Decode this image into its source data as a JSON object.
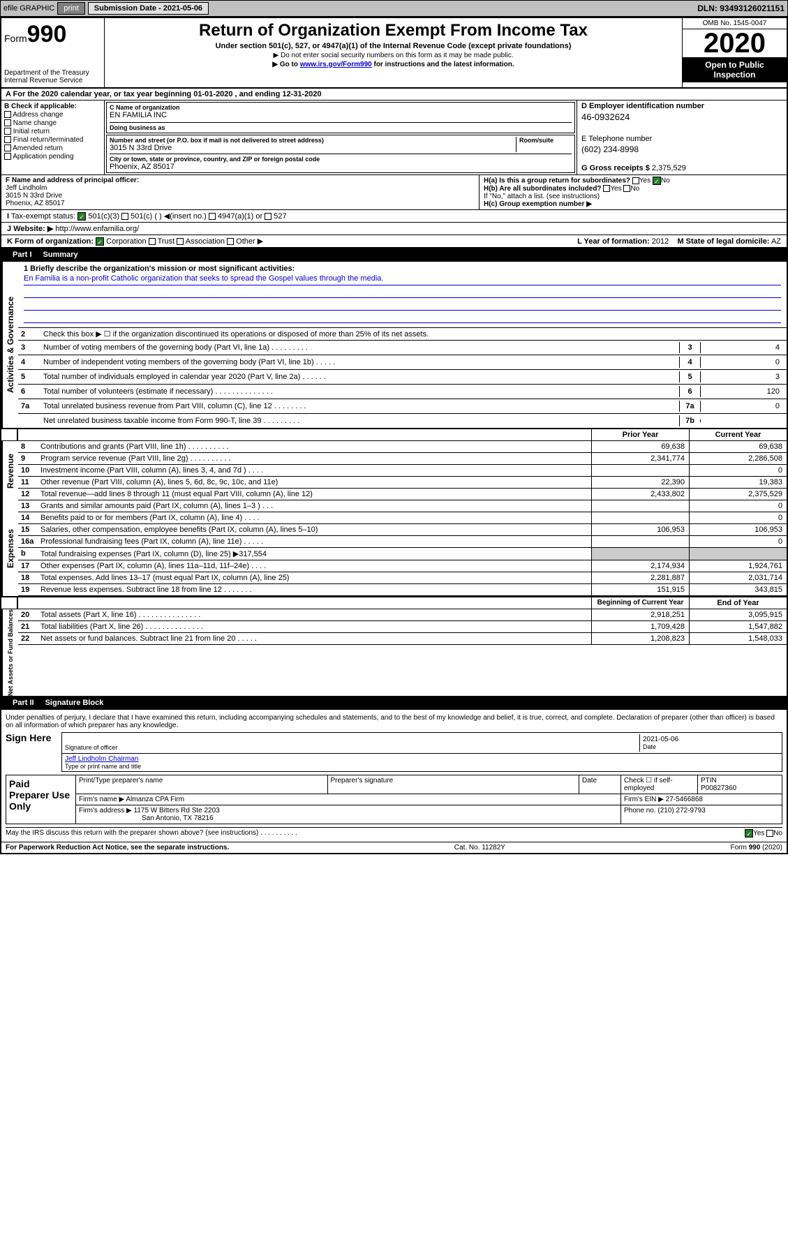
{
  "topbar": {
    "efile_label": "efile GRAPHIC",
    "print_label": "print",
    "submission_label": "Submission Date - 2021-05-06",
    "dln": "DLN: 93493126021151"
  },
  "header": {
    "form_label": "Form",
    "form_number": "990",
    "dept": "Department of the Treasury\nInternal Revenue Service",
    "title": "Return of Organization Exempt From Income Tax",
    "subtitle": "Under section 501(c), 527, or 4947(a)(1) of the Internal Revenue Code (except private foundations)",
    "note1": "▶ Do not enter social security numbers on this form as it may be made public.",
    "note2_pre": "▶ Go to ",
    "note2_link": "www.irs.gov/Form990",
    "note2_post": " for instructions and the latest information.",
    "omb": "OMB No. 1545-0047",
    "year": "2020",
    "open_inspect": "Open to Public Inspection"
  },
  "period": "A For the 2020 calendar year, or tax year beginning 01-01-2020   , and ending 12-31-2020",
  "section_b": {
    "label": "B Check if applicable:",
    "opts": [
      "Address change",
      "Name change",
      "Initial return",
      "Final return/terminated",
      "Amended return",
      "Application pending"
    ]
  },
  "section_c": {
    "name_label": "C Name of organization",
    "name": "EN FAMILIA INC",
    "dba_label": "Doing business as",
    "addr_label": "Number and street (or P.O. box if mail is not delivered to street address)",
    "room_label": "Room/suite",
    "addr": "3015 N 33rd Drive",
    "city_label": "City or town, state or province, country, and ZIP or foreign postal code",
    "city": "Phoenix, AZ  85017"
  },
  "section_d": {
    "ein_label": "D Employer identification number",
    "ein": "46-0932624",
    "tel_label": "E Telephone number",
    "tel": "(602) 234-8998",
    "gross_label": "G Gross receipts $",
    "gross": "2,375,529"
  },
  "section_f": {
    "label": "F  Name and address of principal officer:",
    "name": "Jeff Lindholm",
    "addr1": "3015 N 33rd Drive",
    "addr2": "Phoenix, AZ  85017"
  },
  "section_h": {
    "ha_label": "H(a)  Is this a group return for subordinates?",
    "ha_yes": "Yes",
    "ha_no": "No",
    "hb_label": "H(b)  Are all subordinates included?",
    "hb_yes": "Yes",
    "hb_no": "No",
    "hb_note": "If \"No,\" attach a list. (see instructions)",
    "hc_label": "H(c)  Group exemption number ▶"
  },
  "tax_exempt": {
    "label_i": "I",
    "label": "Tax-exempt status:",
    "o1": "501(c)(3)",
    "o2": "501(c) (   ) ◀(insert no.)",
    "o3": "4947(a)(1) or",
    "o4": "527"
  },
  "website": {
    "label_j": "J",
    "label": "Website: ▶",
    "value": "http://www.enfamilia.org/"
  },
  "section_k": {
    "label": "K Form of organization:",
    "o1": "Corporation",
    "o2": "Trust",
    "o3": "Association",
    "o4": "Other ▶",
    "year_label": "L Year of formation:",
    "year": "2012",
    "state_label": "M State of legal domicile:",
    "state": "AZ"
  },
  "part1": {
    "num": "Part I",
    "title": "Summary",
    "tab1": "Activities & Governance",
    "tab2": "Revenue",
    "tab3": "Expenses",
    "tab4": "Net Assets or Fund Balances",
    "l1_label": "1  Briefly describe the organization's mission or most significant activities:",
    "l1_text": "En Familia is a non-profit Catholic organization that seeks to spread the Gospel values through the media.",
    "l2": "Check this box ▶ ☐  if the organization discontinued its operations or disposed of more than 25% of its net assets.",
    "lines_gov": [
      {
        "n": "3",
        "t": "Number of voting members of the governing body (Part VI, line 1a)  .  .  .  .  .  .  .  .  .",
        "b": "3",
        "v": "4"
      },
      {
        "n": "4",
        "t": "Number of independent voting members of the governing body (Part VI, line 1b)  .  .  .  .  .",
        "b": "4",
        "v": "0"
      },
      {
        "n": "5",
        "t": "Total number of individuals employed in calendar year 2020 (Part V, line 2a)  .  .  .  .  .  .",
        "b": "5",
        "v": "3"
      },
      {
        "n": "6",
        "t": "Total number of volunteers (estimate if necessary)  .  .  .  .  .  .  .  .  .  .  .  .  .  .",
        "b": "6",
        "v": "120"
      },
      {
        "n": "7a",
        "t": "Total unrelated business revenue from Part VIII, column (C), line 12  .  .  .  .  .  .  .  .",
        "b": "7a",
        "v": "0"
      },
      {
        "n": "",
        "t": "Net unrelated business taxable income from Form 990-T, line 39  .  .  .  .  .  .  .  .  .",
        "b": "7b",
        "v": ""
      }
    ],
    "col_head1": "Prior Year",
    "col_head2": "Current Year",
    "rev_lines": [
      {
        "n": "8",
        "t": "Contributions and grants (Part VIII, line 1h)  .  .  .  .  .  .  .  .  .  .",
        "v1": "69,638",
        "v2": "69,638"
      },
      {
        "n": "9",
        "t": "Program service revenue (Part VIII, line 2g)  .  .  .  .  .  .  .  .  .  .",
        "v1": "2,341,774",
        "v2": "2,286,508"
      },
      {
        "n": "10",
        "t": "Investment income (Part VIII, column (A), lines 3, 4, and 7d )  .  .  .  .",
        "v1": "",
        "v2": "0"
      },
      {
        "n": "11",
        "t": "Other revenue (Part VIII, column (A), lines 5, 6d, 8c, 9c, 10c, and 11e)",
        "v1": "22,390",
        "v2": "19,383"
      },
      {
        "n": "12",
        "t": "Total revenue—add lines 8 through 11 (must equal Part VIII, column (A), line 12)",
        "v1": "2,433,802",
        "v2": "2,375,529"
      }
    ],
    "exp_lines": [
      {
        "n": "13",
        "t": "Grants and similar amounts paid (Part IX, column (A), lines 1–3 )  .  .  .",
        "v1": "",
        "v2": "0"
      },
      {
        "n": "14",
        "t": "Benefits paid to or for members (Part IX, column (A), line 4)  .  .  .  .",
        "v1": "",
        "v2": "0"
      },
      {
        "n": "15",
        "t": "Salaries, other compensation, employee benefits (Part IX, column (A), lines 5–10)",
        "v1": "106,953",
        "v2": "106,953"
      },
      {
        "n": "16a",
        "t": "Professional fundraising fees (Part IX, column (A), line 11e)  .  .  .  .  .",
        "v1": "",
        "v2": "0"
      },
      {
        "n": "b",
        "t": "Total fundraising expenses (Part IX, column (D), line 25) ▶317,554",
        "v1": "",
        "v2": ""
      },
      {
        "n": "17",
        "t": "Other expenses (Part IX, column (A), lines 11a–11d, 11f–24e)  .  .  .  .",
        "v1": "2,174,934",
        "v2": "1,924,761"
      },
      {
        "n": "18",
        "t": "Total expenses. Add lines 13–17 (must equal Part IX, column (A), line 25)",
        "v1": "2,281,887",
        "v2": "2,031,714"
      },
      {
        "n": "19",
        "t": "Revenue less expenses. Subtract line 18 from line 12  .  .  .  .  .  .  .",
        "v1": "151,915",
        "v2": "343,815"
      }
    ],
    "net_head1": "Beginning of Current Year",
    "net_head2": "End of Year",
    "net_lines": [
      {
        "n": "20",
        "t": "Total assets (Part X, line 16)  .  .  .  .  .  .  .  .  .  .  .  .  .  .  .",
        "v1": "2,918,251",
        "v2": "3,095,915"
      },
      {
        "n": "21",
        "t": "Total liabilities (Part X, line 26)  .  .  .  .  .  .  .  .  .  .  .  .  .  .",
        "v1": "1,709,428",
        "v2": "1,547,882"
      },
      {
        "n": "22",
        "t": "Net assets or fund balances. Subtract line 21 from line 20  .  .  .  .  .",
        "v1": "1,208,823",
        "v2": "1,548,033"
      }
    ]
  },
  "part2": {
    "num": "Part II",
    "title": "Signature Block",
    "perjury": "Under penalties of perjury, I declare that I have examined this return, including accompanying schedules and statements, and to the best of my knowledge and belief, it is true, correct, and complete. Declaration of preparer (other than officer) is based on all information of which preparer has any knowledge.",
    "sign_here": "Sign Here",
    "sig_officer": "Signature of officer",
    "sig_date": "2021-05-06",
    "date_label": "Date",
    "officer_name": "Jeff Lindholm Chairman",
    "name_label": "Type or print name and title",
    "paid_preparer": "Paid Preparer Use Only",
    "prep_name_label": "Print/Type preparer's name",
    "prep_sig_label": "Preparer's signature",
    "prep_date_label": "Date",
    "prep_check": "Check ☐  if self-employed",
    "ptin_label": "PTIN",
    "ptin": "P00827360",
    "firm_name_label": "Firm's name    ▶",
    "firm_name": "Almanza CPA Firm",
    "firm_ein_label": "Firm's EIN ▶",
    "firm_ein": "27-5466868",
    "firm_addr_label": "Firm's address ▶",
    "firm_addr": "1175 W Bitters Rd Ste 2203",
    "firm_city": "San Antonio, TX  78216",
    "phone_label": "Phone no.",
    "phone": "(210) 272-9793",
    "discuss": "May the IRS discuss this return with the preparer shown above? (see instructions)  .  .  .  .  .  .  .  .  .  .",
    "yes": "Yes",
    "no": "No"
  },
  "footer": {
    "paperwork": "For Paperwork Reduction Act Notice, see the separate instructions.",
    "cat": "Cat. No. 11282Y",
    "form": "Form 990 (2020)"
  }
}
